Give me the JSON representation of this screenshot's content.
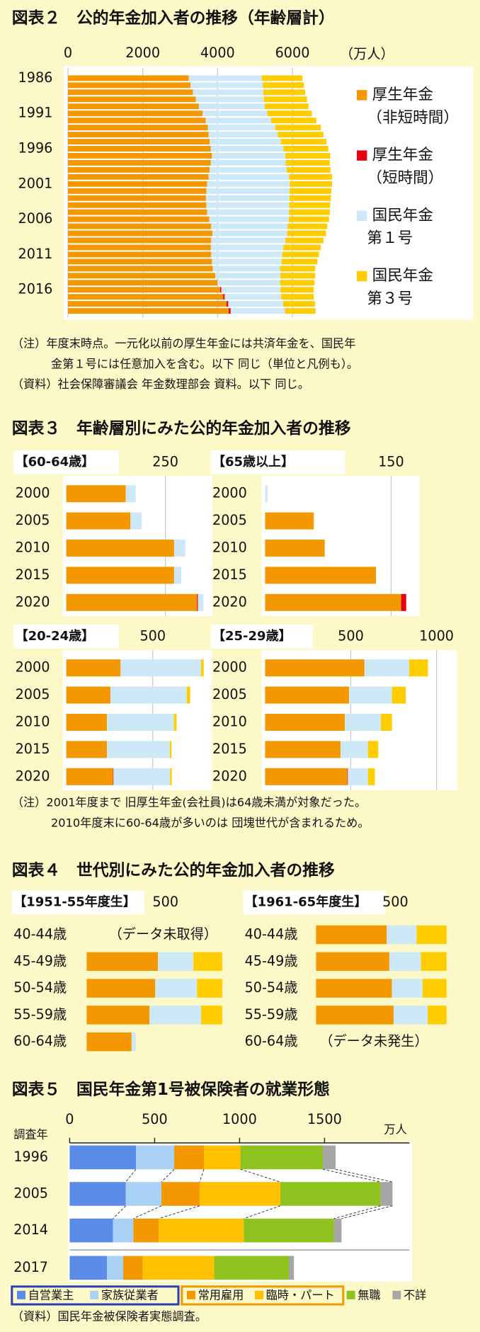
{
  "chart_data": [
    {
      "type": "bar",
      "title": "図表２　公的年金加入者の推移（年齢層計）",
      "xlabel": "（万人）",
      "categories": [
        "1986",
        null,
        null,
        null,
        null,
        "1991",
        null,
        null,
        null,
        null,
        "1996",
        null,
        null,
        null,
        null,
        "2001",
        null,
        null,
        null,
        null,
        "2006",
        null,
        null,
        null,
        null,
        "2011",
        null,
        null,
        null,
        null,
        "2016",
        null,
        null,
        null
      ],
      "series": [
        {
          "name": "厚生年金（非短時間）",
          "color": "#f39800",
          "values": [
            3230,
            3280,
            3340,
            3420,
            3500,
            3600,
            3680,
            3740,
            3760,
            3790,
            3820,
            3850,
            3820,
            3790,
            3760,
            3720,
            3700,
            3690,
            3700,
            3720,
            3780,
            3830,
            3860,
            3830,
            3820,
            3830,
            3850,
            3870,
            3940,
            4000,
            4070,
            4150,
            4240,
            4300
          ]
        },
        {
          "name": "厚生年金（短時間）",
          "color": "#e60012",
          "values": [
            0,
            0,
            0,
            0,
            0,
            0,
            0,
            0,
            0,
            0,
            0,
            0,
            0,
            0,
            0,
            0,
            0,
            0,
            0,
            0,
            0,
            0,
            0,
            0,
            0,
            0,
            0,
            0,
            0,
            0,
            30,
            40,
            45,
            50
          ]
        },
        {
          "name": "国民年金第１号",
          "color": "#cde9f8",
          "values": [
            1950,
            1930,
            1880,
            1820,
            1760,
            1730,
            1750,
            1800,
            1850,
            1900,
            1940,
            1960,
            2000,
            2060,
            2150,
            2210,
            2220,
            2230,
            2210,
            2190,
            2120,
            2040,
            2000,
            1980,
            1940,
            1900,
            1860,
            1800,
            1740,
            1670,
            1580,
            1510,
            1470,
            1450
          ]
        },
        {
          "name": "国民年金第３号",
          "color": "#ffcc00",
          "values": [
            1090,
            1100,
            1120,
            1150,
            1170,
            1190,
            1210,
            1220,
            1220,
            1220,
            1200,
            1200,
            1180,
            1170,
            1150,
            1130,
            1120,
            1110,
            1100,
            1090,
            1080,
            1060,
            1040,
            1020,
            1000,
            980,
            960,
            940,
            930,
            920,
            890,
            870,
            850,
            820
          ]
        }
      ],
      "xlim": [
        0,
        7200
      ],
      "xticks": [
        0,
        2000,
        4000,
        6000
      ],
      "grid": true,
      "notes": [
        "（注）年度末時点。一元化以前の厚生年金には共済年金を、国民年",
        "金第１号には任意加入を含む。以下 同じ（単位と凡例も）。",
        "（資料）社会保障審議会 年金数理部会 資料。以下 同じ。"
      ]
    },
    {
      "type": "bar",
      "title": "図表３　年齢層別にみた公的年金加入者の推移",
      "panels": [
        {
          "label": "【60-64歳】",
          "categories": [
            "2000",
            "2005",
            "2010",
            "2015",
            "2020"
          ],
          "xlim": [
            0,
            360
          ],
          "xticks": [
            250
          ],
          "series": [
            {
              "color": "#f39800",
              "values": [
                150,
                162,
                272,
                272,
                330
              ]
            },
            {
              "color": "#e60012",
              "values": [
                0,
                0,
                0,
                0,
                2
              ]
            },
            {
              "color": "#cde9f8",
              "values": [
                25,
                28,
                28,
                18,
                14
              ]
            }
          ]
        },
        {
          "label": "【65歳以上】",
          "categories": [
            "2000",
            "2005",
            "2010",
            "2015",
            "2020"
          ],
          "xlim": [
            0,
            180
          ],
          "xticks": [
            150
          ],
          "series": [
            {
              "color": "#f39800",
              "values": [
                0,
                58,
                71,
                132,
                162
              ]
            },
            {
              "color": "#e60012",
              "values": [
                0,
                0,
                0,
                0,
                6
              ]
            },
            {
              "color": "#cde9f8",
              "values": [
                3,
                0,
                0,
                0,
                0
              ]
            }
          ]
        },
        {
          "label": "【20-24歳】",
          "categories": [
            "2000",
            "2005",
            "2010",
            "2015",
            "2020"
          ],
          "xlim": [
            0,
            820
          ],
          "xticks": [
            500
          ],
          "series": [
            {
              "color": "#f39800",
              "values": [
                314,
                255,
                235,
                235,
                270
              ]
            },
            {
              "color": "#e60012",
              "values": [
                0,
                0,
                0,
                0,
                3
              ]
            },
            {
              "color": "#cde9f8",
              "values": [
                465,
                441,
                387,
                363,
                327
              ]
            },
            {
              "color": "#ffcc00",
              "values": [
                15,
                20,
                15,
                10,
                10
              ]
            }
          ]
        },
        {
          "label": "【25-29歳】",
          "categories": [
            "2000",
            "2005",
            "2010",
            "2015",
            "2020"
          ],
          "xlim": [
            0,
            1100
          ],
          "xticks": [
            500,
            1000
          ],
          "series": [
            {
              "color": "#f39800",
              "values": [
                580,
                490,
                465,
                440,
                480
              ]
            },
            {
              "color": "#e60012",
              "values": [
                0,
                0,
                0,
                0,
                3
              ]
            },
            {
              "color": "#cde9f8",
              "values": [
                260,
                250,
                210,
                160,
                117
              ]
            },
            {
              "color": "#ffcc00",
              "values": [
                110,
                80,
                65,
                60,
                40
              ]
            }
          ]
        }
      ],
      "notes": [
        "（注）2001年度まで 旧厚生年金(会社員)は64歳未満が対象だった。",
        "2010年度末に60-64歳が多いのは 団塊世代が含まれるため。"
      ]
    },
    {
      "type": "bar",
      "title": "図表４　世代別にみた公的年金加入者の推移",
      "panels": [
        {
          "label": "【1951-55年度生】",
          "categories": [
            "40-44歳",
            "45-49歳",
            "50-54歳",
            "55-59歳",
            "60-64歳"
          ],
          "xlim": [
            0,
            900
          ],
          "xticks": [
            500
          ],
          "annotation": "（データ未取得）",
          "series": [
            {
              "color": "#f39800",
              "values": [
                null,
                452,
                435,
                398,
                285
              ]
            },
            {
              "color": "#cde9f8",
              "values": [
                null,
                225,
                265,
                328,
                27
              ]
            },
            {
              "color": "#ffcc00",
              "values": [
                null,
                183,
                160,
                134,
                0
              ]
            }
          ]
        },
        {
          "label": "【1961-65年度生】",
          "categories": [
            "40-44歳",
            "45-49歳",
            "50-54歳",
            "55-59歳",
            "60-64歳"
          ],
          "xlim": [
            0,
            900
          ],
          "xticks": [
            500
          ],
          "annotation": "（データ未発生）",
          "series": [
            {
              "color": "#f39800",
              "values": [
                446,
                462,
                478,
                489,
                null
              ]
            },
            {
              "color": "#cde9f8",
              "values": [
                188,
                199,
                194,
                215,
                null
              ]
            },
            {
              "color": "#ffcc00",
              "values": [
                189,
                162,
                151,
                119,
                null
              ]
            }
          ]
        }
      ]
    },
    {
      "type": "bar",
      "title": "図表５　国民年金第1号被保険者の就業形態",
      "ylabel": "調査年",
      "xlabel": "万人",
      "categories": [
        "1996",
        "2005",
        "2014",
        "2017"
      ],
      "series": [
        {
          "name": "自営業主",
          "color": "#5b8de8",
          "values": [
            390,
            330,
            255,
            220
          ]
        },
        {
          "name": "家族従業者",
          "color": "#a9d0f5",
          "values": [
            225,
            210,
            120,
            95
          ]
        },
        {
          "name": "常用雇用",
          "color": "#f39800",
          "values": [
            175,
            225,
            150,
            115
          ]
        },
        {
          "name": "臨時・パート",
          "color": "#ffc000",
          "values": [
            215,
            475,
            500,
            420
          ]
        },
        {
          "name": "無職",
          "color": "#8dc21f",
          "values": [
            485,
            590,
            530,
            440
          ]
        },
        {
          "name": "不詳",
          "color": "#a6a6a6",
          "values": [
            75,
            70,
            45,
            30
          ]
        }
      ],
      "xlim": [
        0,
        2000
      ],
      "xticks": [
        0,
        500,
        1000,
        1500
      ],
      "notes": [
        "（資料）国民年金被保険者実態調査。"
      ]
    }
  ]
}
